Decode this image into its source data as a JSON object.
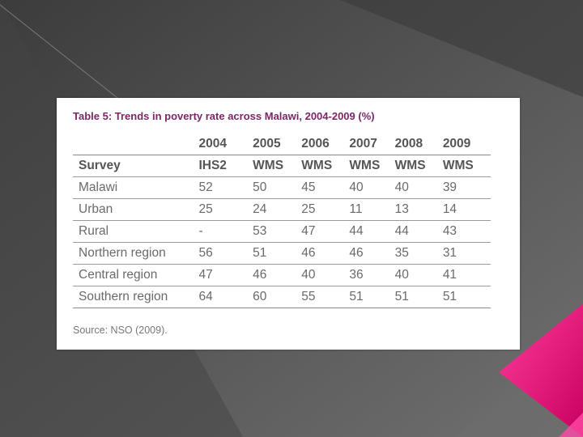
{
  "colors": {
    "background": "#5a5a5a",
    "accent": "#e0157a",
    "title": "#7b2668"
  },
  "table": {
    "title": "Table 5: Trends in poverty rate across Malawi, 2004-2009 (%)",
    "years": [
      "2004",
      "2005",
      "2006",
      "2007",
      "2008",
      "2009"
    ],
    "survey_label": "Survey",
    "surveys": [
      "IHS2",
      "WMS",
      "WMS",
      "WMS",
      "WMS",
      "WMS"
    ],
    "rows": [
      {
        "label": "Malawi",
        "values": [
          "52",
          "50",
          "45",
          "40",
          "40",
          "39"
        ]
      },
      {
        "label": "Urban",
        "values": [
          "25",
          "24",
          "25",
          "11",
          "13",
          "14"
        ]
      },
      {
        "label": "Rural",
        "values": [
          "-",
          "53",
          "47",
          "44",
          "44",
          "43"
        ]
      },
      {
        "label": "Northern region",
        "values": [
          "56",
          "51",
          "46",
          "46",
          "35",
          "31"
        ]
      },
      {
        "label": "Central region",
        "values": [
          "47",
          "46",
          "40",
          "36",
          "40",
          "41"
        ]
      },
      {
        "label": "Southern region",
        "values": [
          "64",
          "60",
          "55",
          "51",
          "51",
          "51"
        ]
      }
    ],
    "source": "Source: NSO (2009)."
  }
}
